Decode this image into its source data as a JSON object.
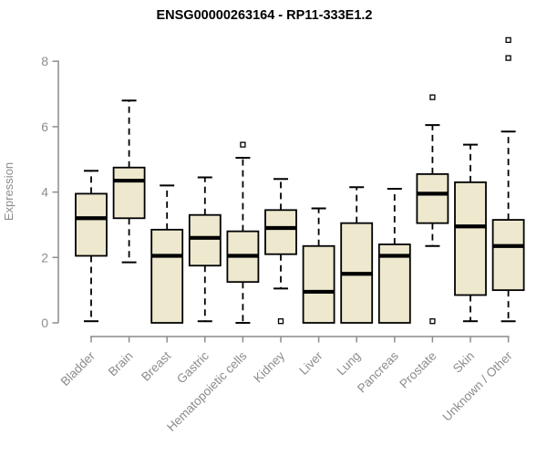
{
  "chart_data": {
    "type": "boxplot",
    "title": "ENSG00000263164 - RP11-333E1.2",
    "ylabel": "Expression",
    "xlabel": "",
    "ylim": [
      0,
      8.8
    ],
    "yticks": [
      0,
      2,
      4,
      6,
      8
    ],
    "grid": false,
    "legend": "none",
    "categories": [
      "Bladder",
      "Brain",
      "Breast",
      "Gastric",
      "Hematopoietic cells",
      "Kidney",
      "Liver",
      "Lung",
      "Pancreas",
      "Prostate",
      "Skin",
      "Unknown / Other"
    ],
    "series": [
      {
        "category": "Bladder",
        "whisker_low": 0.05,
        "q1": 2.05,
        "median": 3.2,
        "q3": 3.95,
        "whisker_high": 4.65,
        "outliers": []
      },
      {
        "category": "Brain",
        "whisker_low": 1.85,
        "q1": 3.2,
        "median": 4.35,
        "q3": 4.75,
        "whisker_high": 6.8,
        "outliers": []
      },
      {
        "category": "Breast",
        "whisker_low": 0.0,
        "q1": 0.0,
        "median": 2.05,
        "q3": 2.85,
        "whisker_high": 4.2,
        "outliers": []
      },
      {
        "category": "Gastric",
        "whisker_low": 0.05,
        "q1": 1.75,
        "median": 2.6,
        "q3": 3.3,
        "whisker_high": 4.45,
        "outliers": []
      },
      {
        "category": "Hematopoietic cells",
        "whisker_low": 0.0,
        "q1": 1.25,
        "median": 2.05,
        "q3": 2.8,
        "whisker_high": 5.05,
        "outliers": [
          5.45
        ]
      },
      {
        "category": "Kidney",
        "whisker_low": 1.05,
        "q1": 2.1,
        "median": 2.9,
        "q3": 3.45,
        "whisker_high": 4.4,
        "outliers": [
          0.05
        ]
      },
      {
        "category": "Liver",
        "whisker_low": 0.0,
        "q1": 0.0,
        "median": 0.95,
        "q3": 2.35,
        "whisker_high": 3.5,
        "outliers": []
      },
      {
        "category": "Lung",
        "whisker_low": 0.0,
        "q1": 0.0,
        "median": 1.5,
        "q3": 3.05,
        "whisker_high": 4.15,
        "outliers": []
      },
      {
        "category": "Pancreas",
        "whisker_low": 0.0,
        "q1": 0.0,
        "median": 2.05,
        "q3": 2.4,
        "whisker_high": 4.1,
        "outliers": []
      },
      {
        "category": "Prostate",
        "whisker_low": 2.35,
        "q1": 3.05,
        "median": 3.95,
        "q3": 4.55,
        "whisker_high": 6.05,
        "outliers": [
          6.9,
          0.05
        ]
      },
      {
        "category": "Skin",
        "whisker_low": 0.05,
        "q1": 0.85,
        "median": 2.95,
        "q3": 4.3,
        "whisker_high": 5.45,
        "outliers": []
      },
      {
        "category": "Unknown / Other",
        "whisker_low": 0.05,
        "q1": 1.0,
        "median": 2.35,
        "q3": 3.15,
        "whisker_high": 5.85,
        "outliers": [
          8.65,
          8.1
        ]
      }
    ],
    "colors": {
      "box_fill": "#ede8ce",
      "box_border": "#000000",
      "median": "#000000",
      "whisker": "#000000",
      "outlier_border": "#000000",
      "outlier_fill": "#ffffff",
      "axis": "#8c8c8c",
      "tick_text": "#8c8c8c",
      "title_text": "#000000",
      "background": "#ffffff"
    }
  }
}
